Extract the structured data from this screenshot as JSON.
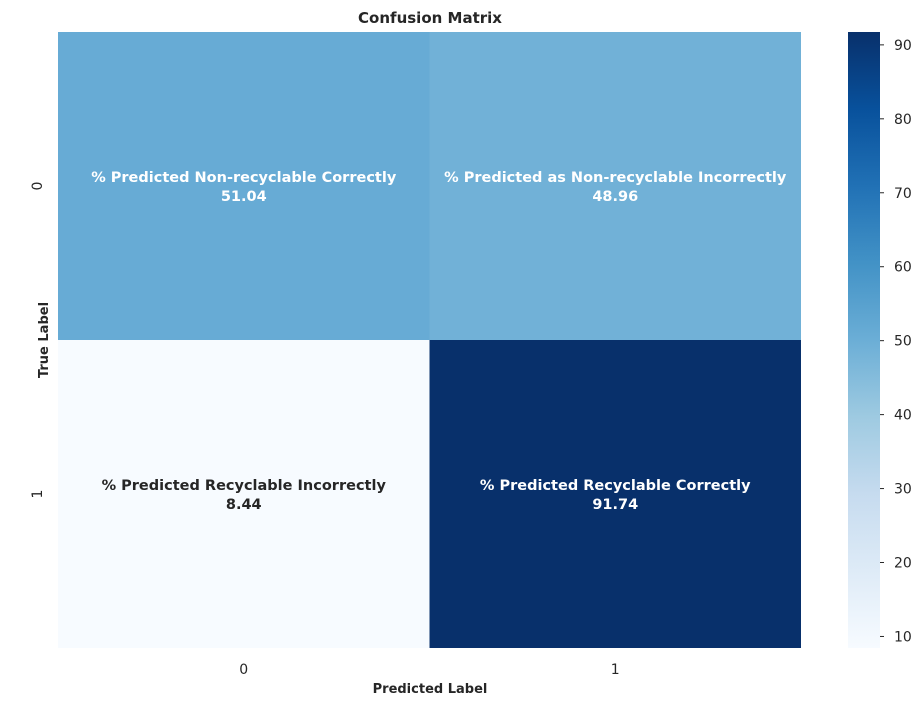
{
  "chart_data": {
    "type": "heatmap",
    "title": "Confusion Matrix",
    "xlabel": "Predicted Label",
    "ylabel": "True Label",
    "x_categories": [
      "0",
      "1"
    ],
    "y_categories": [
      "0",
      "1"
    ],
    "cells": [
      [
        {
          "label": "% Predicted Non-recyclable Correctly",
          "value": "51.04",
          "v": 51.04
        },
        {
          "label": "% Predicted as Non-recyclable Incorrectly",
          "value": "48.96",
          "v": 48.96
        }
      ],
      [
        {
          "label": "% Predicted Recyclable Incorrectly",
          "value": "8.44",
          "v": 8.44
        },
        {
          "label": "% Predicted Recyclable Correctly",
          "value": "91.74",
          "v": 91.74
        }
      ]
    ],
    "colormap": "Blues",
    "vmin": 8.44,
    "vmax": 91.74,
    "colorbar_ticks": [
      "10",
      "20",
      "30",
      "40",
      "50",
      "60",
      "70",
      "80",
      "90"
    ]
  }
}
